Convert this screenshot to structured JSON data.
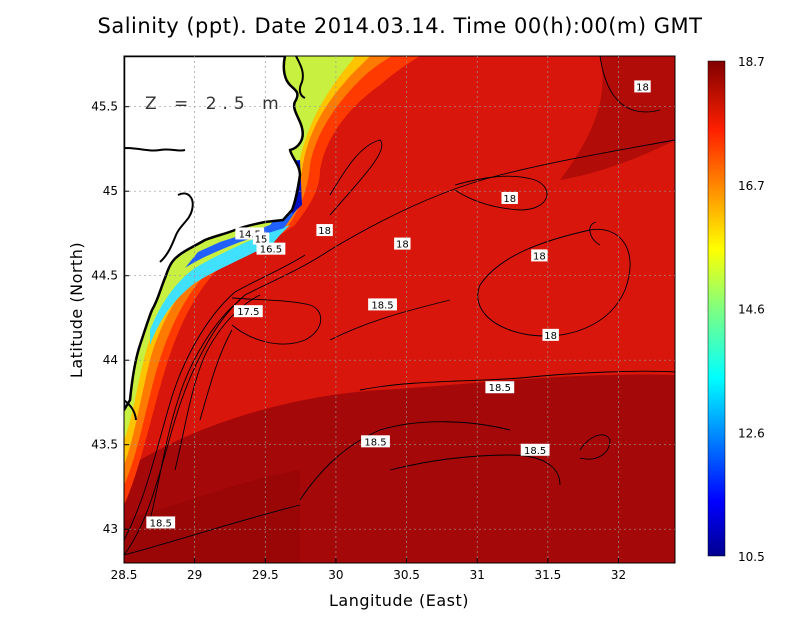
{
  "title": "Salinity (ppt). Date 2014.03.14. Time 00(h):00(m) GMT",
  "depth_label": "Z = 2.5 m",
  "axes": {
    "xlabel": "Langitude (East)",
    "ylabel": "Latitude (North)",
    "xlim": [
      28.5,
      32.4
    ],
    "ylim": [
      42.8,
      45.8
    ],
    "xticks": [
      "28.5",
      "29",
      "29.5",
      "30",
      "30.5",
      "31",
      "31.5",
      "32"
    ],
    "yticks": [
      "43",
      "43.5",
      "44",
      "44.5",
      "45",
      "45.5"
    ],
    "grid": true
  },
  "colorbar": {
    "min": 10.5,
    "max": 18.7,
    "labels": [
      "18.7",
      "16.7",
      "14.6",
      "12.6",
      "10.5"
    ],
    "colormap": "jet"
  },
  "contour_labels": [
    {
      "text": "18",
      "lon": 32.17,
      "lat": 45.62
    },
    {
      "text": "18",
      "lon": 31.23,
      "lat": 44.96
    },
    {
      "text": "18",
      "lon": 29.92,
      "lat": 44.77
    },
    {
      "text": "18",
      "lon": 30.47,
      "lat": 44.69
    },
    {
      "text": "18",
      "lon": 31.44,
      "lat": 44.62
    },
    {
      "text": "18",
      "lon": 31.52,
      "lat": 44.15
    },
    {
      "text": "18.5",
      "lon": 30.33,
      "lat": 44.33
    },
    {
      "text": "17.5",
      "lon": 29.38,
      "lat": 44.29
    },
    {
      "text": "18.5",
      "lon": 31.16,
      "lat": 43.84
    },
    {
      "text": "18.5",
      "lon": 30.28,
      "lat": 43.52
    },
    {
      "text": "18.5",
      "lon": 31.41,
      "lat": 43.47
    },
    {
      "text": "18.5",
      "lon": 28.76,
      "lat": 43.04
    },
    {
      "text": "14.5",
      "lon": 29.39,
      "lat": 44.75
    },
    {
      "text": "15",
      "lon": 29.47,
      "lat": 44.72
    },
    {
      "text": "16.5",
      "lon": 29.54,
      "lat": 44.66
    }
  ],
  "colors": {
    "land": "#ffffff",
    "coastline": "#000000",
    "sea_high": "#cc1a10",
    "sea_max": "#9e0606",
    "contour": "#000000"
  }
}
